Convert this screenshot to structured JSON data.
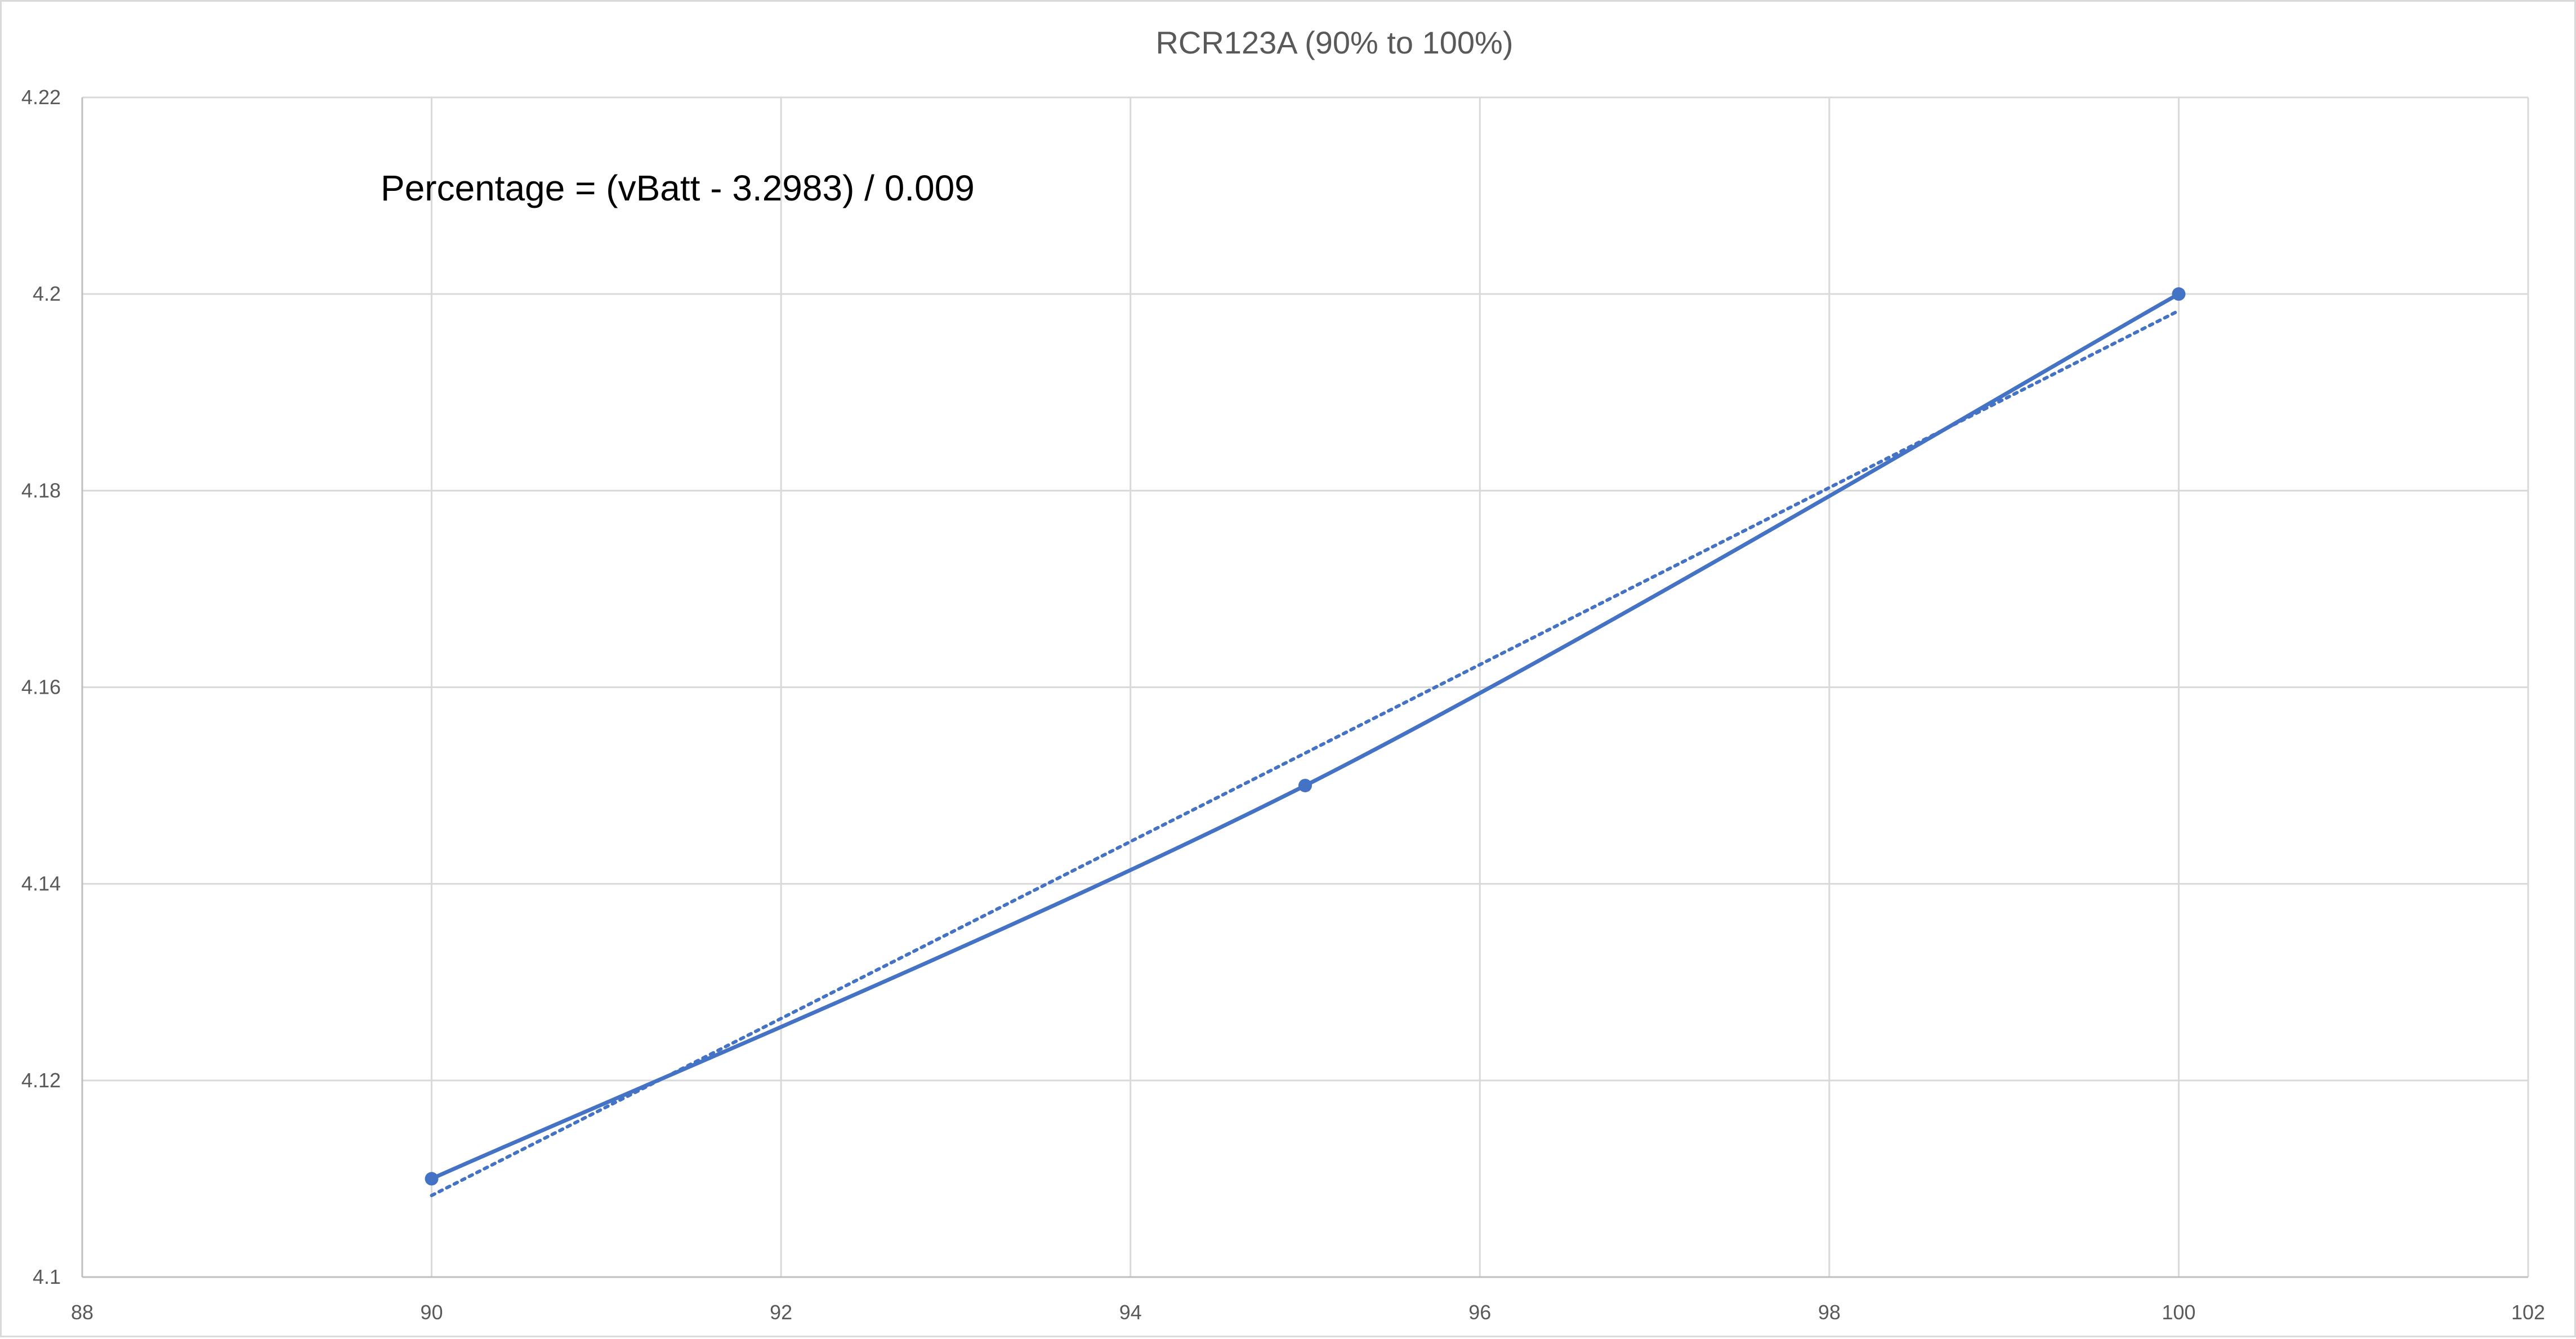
{
  "chart_data": {
    "type": "scatter",
    "title": "RCR123A (90% to 100%)",
    "xlabel": "",
    "ylabel": "",
    "xlim": [
      88,
      102
    ],
    "ylim": [
      4.1,
      4.22
    ],
    "x_ticks": [
      88,
      90,
      92,
      94,
      96,
      98,
      100,
      102
    ],
    "x_tick_labels": [
      "88",
      "90",
      "92",
      "94",
      "96",
      "98",
      "100",
      "102"
    ],
    "y_ticks": [
      4.1,
      4.12,
      4.14,
      4.16,
      4.18,
      4.2,
      4.22
    ],
    "y_tick_labels": [
      "4.1",
      "4.12",
      "4.14",
      "4.16",
      "4.18",
      "4.2",
      "4.22"
    ],
    "grid": true,
    "legend": "none",
    "series": [
      {
        "x": [
          90,
          95,
          100
        ],
        "y": [
          4.11,
          4.15,
          4.2
        ],
        "line": "smooth",
        "marker": "circle",
        "color": "#4472c4"
      }
    ],
    "trendline": {
      "kind": "linear",
      "style": "dotted",
      "color": "#4472c4",
      "x": [
        90,
        100
      ],
      "y": [
        4.1083,
        4.1983
      ]
    },
    "annotations": [
      {
        "text": "Percentage = (vBatt - 3.2983) / 0.009",
        "position": "upper-left"
      }
    ]
  }
}
